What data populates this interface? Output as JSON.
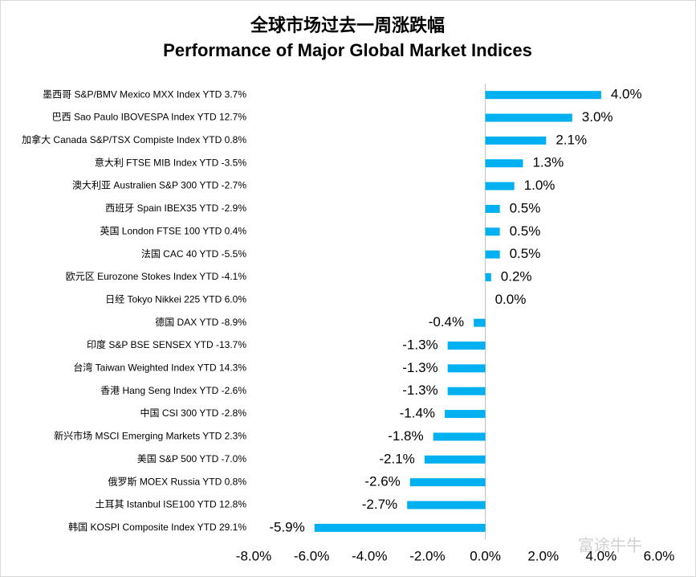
{
  "chart_data": {
    "type": "barh",
    "title": "全球市场过去一周涨跌幅",
    "subtitle": "Performance of Major Global Market Indices",
    "watermark": "富途牛牛",
    "categories": [
      "墨西哥 S&P/BMV Mexico MXX Index YTD 3.7%",
      "巴西 Sao Paulo IBOVESPA Index YTD 12.7%",
      "加拿大 Canada S&P/TSX Compiste Index YTD 0.8%",
      "意大利 FTSE MIB Index YTD -3.5%",
      "澳大利亚 Australien S&P 300 YTD -2.7%",
      "西班牙 Spain IBEX35 YTD -2.9%",
      "英国 London FTSE 100 YTD 0.4%",
      "法国 CAC 40  YTD -5.5%",
      "欧元区 Eurozone Stokes Index YTD -4.1%",
      "日经 Tokyo Nikkei 225  YTD 6.0%",
      "德国 DAX YTD -8.9%",
      "印度 S&P BSE SENSEX YTD -13.7%",
      "台湾 Taiwan Weighted Index YTD 14.3%",
      "香港 Hang Seng Index YTD -2.6%",
      "中国 CSI 300 YTD -2.8%",
      "新兴市场 MSCI Emerging Markets YTD 2.3%",
      "美国 S&P 500  YTD -7.0%",
      "俄罗斯 MOEX Russia  YTD 0.8%",
      "土耳其 Istanbul ISE100 YTD 12.8%",
      "韩国 KOSPI Composite Index YTD 29.1%"
    ],
    "values": [
      4.0,
      3.0,
      2.1,
      1.3,
      1.0,
      0.5,
      0.5,
      0.5,
      0.2,
      0.0,
      -0.4,
      -1.3,
      -1.3,
      -1.3,
      -1.4,
      -1.8,
      -2.1,
      -2.6,
      -2.7,
      -5.9
    ],
    "value_labels": [
      "4.0%",
      "3.0%",
      "2.1%",
      "1.3%",
      "1.0%",
      "0.5%",
      "0.5%",
      "0.5%",
      "0.2%",
      "0.0%",
      "-0.4%",
      "-1.3%",
      "-1.3%",
      "-1.3%",
      "-1.4%",
      "-1.8%",
      "-2.1%",
      "-2.6%",
      "-2.7%",
      "-5.9%"
    ],
    "color": "#00b0f0",
    "xlim": [
      -8,
      6
    ],
    "xticks": [
      {
        "value": -8,
        "label": "-8.0%"
      },
      {
        "value": -6,
        "label": "-6.0%"
      },
      {
        "value": -4,
        "label": "-4.0%"
      },
      {
        "value": -2,
        "label": "-2.0%"
      },
      {
        "value": 0,
        "label": "0.0%"
      },
      {
        "value": 2,
        "label": "2.0%"
      },
      {
        "value": 4,
        "label": "4.0%"
      },
      {
        "value": 6,
        "label": "6.0%"
      }
    ],
    "grid": false
  }
}
